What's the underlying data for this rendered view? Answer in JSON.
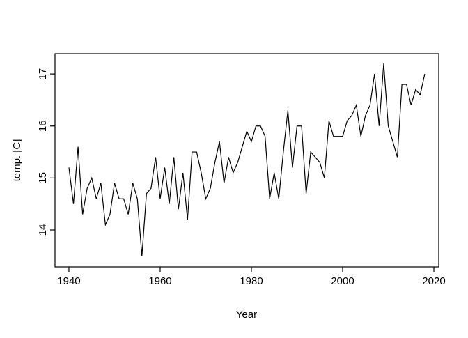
{
  "chart_data": {
    "type": "line",
    "title": "",
    "xlabel": "Year",
    "ylabel": "temp. [C]",
    "legend": "none",
    "grid": false,
    "line_color": "#000000",
    "background_color": "#ffffff",
    "x_ticks": [
      1940,
      1960,
      1980,
      2000,
      2020
    ],
    "y_ticks": [
      14,
      15,
      16,
      17
    ],
    "xlim": [
      1936.95,
      2021.07
    ],
    "ylim": [
      13.29,
      17.39
    ],
    "series": [
      {
        "name": "temp",
        "x": [
          1940,
          1941,
          1942,
          1943,
          1944,
          1945,
          1946,
          1947,
          1948,
          1949,
          1950,
          1951,
          1952,
          1953,
          1954,
          1955,
          1956,
          1957,
          1958,
          1959,
          1960,
          1961,
          1962,
          1963,
          1964,
          1965,
          1966,
          1967,
          1968,
          1969,
          1970,
          1971,
          1972,
          1973,
          1974,
          1975,
          1976,
          1977,
          1978,
          1979,
          1980,
          1981,
          1982,
          1983,
          1984,
          1985,
          1986,
          1987,
          1988,
          1989,
          1990,
          1991,
          1992,
          1993,
          1994,
          1995,
          1996,
          1997,
          1998,
          1999,
          2000,
          2001,
          2002,
          2003,
          2004,
          2005,
          2006,
          2007,
          2008,
          2009,
          2010,
          2011,
          2012,
          2013,
          2014,
          2015,
          2016,
          2017,
          2018
        ],
        "values": [
          15.2,
          14.5,
          15.6,
          14.3,
          14.8,
          15.0,
          14.6,
          14.9,
          14.1,
          14.3,
          14.9,
          14.6,
          14.6,
          14.3,
          14.9,
          14.6,
          13.5,
          14.7,
          14.8,
          15.4,
          14.6,
          15.2,
          14.5,
          15.4,
          14.4,
          15.1,
          14.2,
          15.5,
          15.5,
          15.1,
          14.6,
          14.8,
          15.3,
          15.7,
          14.9,
          15.4,
          15.1,
          15.3,
          15.6,
          15.9,
          15.7,
          16.0,
          16.0,
          15.8,
          14.6,
          15.1,
          14.6,
          15.5,
          16.3,
          15.2,
          16.0,
          16.0,
          14.7,
          15.5,
          15.4,
          15.3,
          15.0,
          16.1,
          15.8,
          15.8,
          15.8,
          16.1,
          16.2,
          16.4,
          15.8,
          16.2,
          16.4,
          17.0,
          16.0,
          17.2,
          16.0,
          15.7,
          15.4,
          16.8,
          16.8,
          16.4,
          16.7,
          16.6,
          17.0
        ]
      }
    ]
  }
}
